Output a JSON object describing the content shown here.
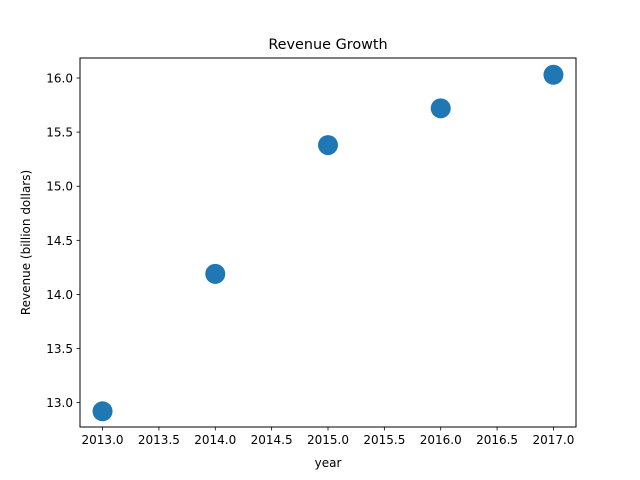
{
  "chart_data": {
    "type": "scatter",
    "title": "Revenue Growth",
    "xlabel": "year",
    "ylabel": "Revenue (billion dollars)",
    "xlim": [
      2012.8,
      2017.2
    ],
    "ylim": [
      12.775,
      16.185
    ],
    "x_ticks": [
      "2013.0",
      "2013.5",
      "2014.0",
      "2014.5",
      "2015.0",
      "2015.5",
      "2016.0",
      "2016.5",
      "2017.0"
    ],
    "y_ticks": [
      "13.0",
      "13.5",
      "14.0",
      "14.5",
      "15.0",
      "15.5",
      "16.0"
    ],
    "grid": false,
    "color": "#1f77b4",
    "series": [
      {
        "x": [
          2013,
          2014,
          2015,
          2016,
          2017
        ],
        "y": [
          12.92,
          14.19,
          15.38,
          15.72,
          16.03
        ]
      }
    ]
  }
}
